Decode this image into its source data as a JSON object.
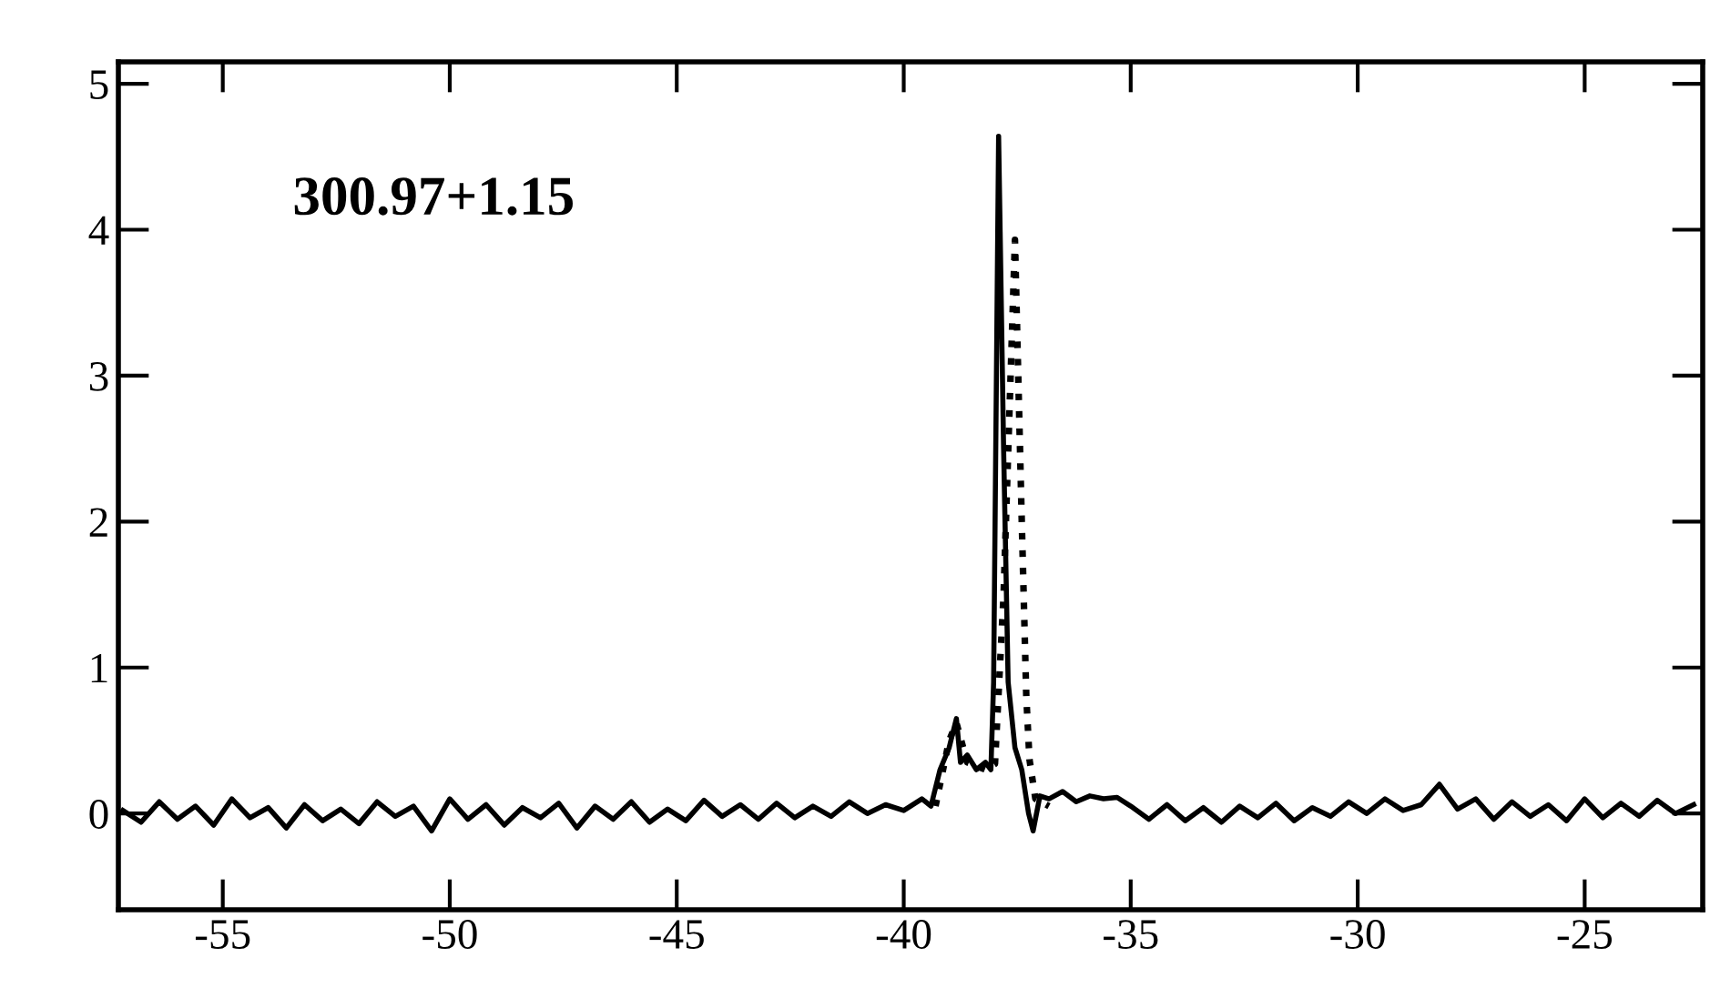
{
  "chart_data": {
    "type": "line",
    "annotations": [
      "300.97+1.15"
    ],
    "series": [
      {
        "color": "#000000",
        "line_style": "solid",
        "x": [
          -57.2,
          -56.8,
          -56.4,
          -56.0,
          -55.6,
          -55.2,
          -54.8,
          -54.4,
          -54.0,
          -53.6,
          -53.2,
          -52.8,
          -52.4,
          -52.0,
          -51.6,
          -51.2,
          -50.8,
          -50.4,
          -50.0,
          -49.6,
          -49.2,
          -48.8,
          -48.4,
          -48.0,
          -47.6,
          -47.2,
          -46.8,
          -46.4,
          -46.0,
          -45.6,
          -45.2,
          -44.8,
          -44.4,
          -44.0,
          -43.6,
          -43.2,
          -42.8,
          -42.4,
          -42.0,
          -41.6,
          -41.2,
          -40.8,
          -40.4,
          -40.0,
          -39.6,
          -39.4,
          -39.2,
          -39.0,
          -38.84,
          -38.75,
          -38.6,
          -38.4,
          -38.2,
          -38.08,
          -38.02,
          -37.91,
          -37.8,
          -37.7,
          -37.55,
          -37.4,
          -37.25,
          -37.15,
          -37.0,
          -36.8,
          -36.5,
          -36.2,
          -35.9,
          -35.6,
          -35.3,
          -35.0,
          -34.6,
          -34.2,
          -33.8,
          -33.4,
          -33.0,
          -32.6,
          -32.2,
          -31.8,
          -31.4,
          -31.0,
          -30.6,
          -30.2,
          -29.8,
          -29.4,
          -29.0,
          -28.6,
          -28.2,
          -27.8,
          -27.4,
          -27.0,
          -26.6,
          -26.2,
          -25.8,
          -25.4,
          -25.0,
          -24.6,
          -24.2,
          -23.8,
          -23.4,
          -23.0,
          -22.6
        ],
        "values": [
          0.02,
          -0.06,
          0.08,
          -0.04,
          0.05,
          -0.08,
          0.1,
          -0.03,
          0.04,
          -0.1,
          0.06,
          -0.05,
          0.03,
          -0.07,
          0.08,
          -0.02,
          0.05,
          -0.12,
          0.1,
          -0.04,
          0.06,
          -0.08,
          0.04,
          -0.03,
          0.07,
          -0.1,
          0.05,
          -0.04,
          0.08,
          -0.06,
          0.03,
          -0.05,
          0.09,
          -0.02,
          0.06,
          -0.04,
          0.07,
          -0.03,
          0.05,
          -0.02,
          0.08,
          0.0,
          0.06,
          0.02,
          0.1,
          0.05,
          0.3,
          0.45,
          0.65,
          0.35,
          0.4,
          0.3,
          0.35,
          0.3,
          0.9,
          4.64,
          2.5,
          0.9,
          0.45,
          0.3,
          0.0,
          -0.12,
          0.12,
          0.1,
          0.15,
          0.08,
          0.12,
          0.1,
          0.11,
          0.05,
          -0.04,
          0.06,
          -0.05,
          0.04,
          -0.06,
          0.05,
          -0.03,
          0.07,
          -0.05,
          0.04,
          -0.02,
          0.08,
          0.0,
          0.1,
          0.02,
          0.06,
          0.2,
          0.03,
          0.1,
          -0.04,
          0.08,
          -0.02,
          0.06,
          -0.05,
          0.1,
          -0.03,
          0.07,
          -0.02,
          0.09,
          0.0,
          0.06
        ]
      },
      {
        "color": "#000000",
        "line_style": "dotted",
        "x": [
          -39.3,
          -39.0,
          -38.84,
          -38.6,
          -38.2,
          -37.99,
          -37.8,
          -37.55,
          -37.4,
          -37.3,
          -37.23,
          -37.1,
          -36.8
        ],
        "values": [
          0.05,
          0.5,
          0.62,
          0.35,
          0.3,
          0.34,
          1.5,
          3.93,
          2.0,
          0.8,
          0.37,
          0.1,
          0.05
        ]
      }
    ],
    "xlim": [
      -57.3,
      -22.4
    ],
    "ylim": [
      -0.66,
      5.15
    ],
    "xticks": [
      -55,
      -50,
      -45,
      -40,
      -35,
      -30,
      -25
    ],
    "yticks": [
      0,
      1,
      2,
      3,
      4,
      5
    ],
    "grid": false,
    "legend": false,
    "marker": "none"
  }
}
